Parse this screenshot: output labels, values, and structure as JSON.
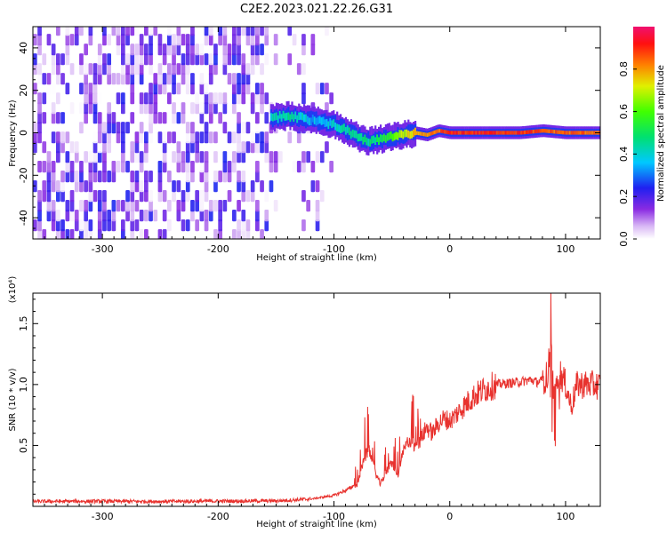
{
  "title": "C2E2.2023.021.22.26.G31",
  "chart_data": [
    {
      "type": "heatmap",
      "xlabel": "Height of straight line (km)",
      "ylabel": "Frequency (Hz)",
      "xlim": [
        -360,
        130
      ],
      "ylim": [
        -50,
        50
      ],
      "x_ticks": [
        -300,
        -200,
        -100,
        0,
        100
      ],
      "y_ticks": [
        -40,
        -20,
        0,
        20,
        40
      ],
      "colorbar": {
        "label": "Normalized spectral amplitude",
        "range": [
          0.0,
          1.0
        ],
        "ticks": [
          0.0,
          0.2,
          0.4,
          0.6,
          0.8
        ]
      },
      "ridge_track": {
        "x": [
          -155,
          -140,
          -130,
          -120,
          -110,
          -100,
          -90,
          -80,
          -70,
          -60,
          -50,
          -40,
          -30,
          -20,
          -10,
          0,
          20,
          40,
          60,
          80,
          100,
          130
        ],
        "y": [
          7,
          8,
          7,
          6,
          5,
          4,
          1,
          -2,
          -4,
          -3,
          -2,
          -1,
          0,
          -1,
          1,
          0,
          0,
          0,
          0,
          1,
          0,
          0
        ],
        "amplitude": [
          0.4,
          0.45,
          0.4,
          0.35,
          0.35,
          0.4,
          0.45,
          0.45,
          0.45,
          0.5,
          0.6,
          0.7,
          0.75,
          0.8,
          0.85,
          0.9,
          0.9,
          0.9,
          0.9,
          0.85,
          0.85,
          0.85
        ]
      },
      "noise_region": {
        "x_from": -360,
        "x_to": -100,
        "amplitude": [
          0.0,
          0.25
        ]
      }
    },
    {
      "type": "line",
      "xlabel": "Height of straight line (km)",
      "ylabel": "SNR (10 * v/v)",
      "y_multiplier": "(x10⁴)",
      "xlim": [
        -360,
        130
      ],
      "ylim": [
        0,
        17500
      ],
      "x_ticks": [
        -300,
        -200,
        -100,
        0,
        100
      ],
      "y_ticks": [
        5000,
        10000,
        15000
      ],
      "y_tick_labels": [
        "0.5",
        "1.0",
        "1.5"
      ],
      "series": [
        {
          "color": "#e8322e",
          "x": [
            -360,
            -300,
            -250,
            -200,
            -150,
            -120,
            -100,
            -90,
            -80,
            -75,
            -70,
            -65,
            -60,
            -55,
            -50,
            -45,
            -40,
            -35,
            -30,
            -25,
            -20,
            -15,
            -10,
            -5,
            0,
            10,
            20,
            30,
            40,
            50,
            60,
            70,
            75,
            80,
            85,
            87,
            90,
            95,
            100,
            105,
            110,
            120,
            130
          ],
          "y": [
            400,
            420,
            400,
            430,
            450,
            600,
            900,
            1300,
            1800,
            3500,
            4800,
            3000,
            1800,
            2800,
            3600,
            2500,
            4500,
            5500,
            4800,
            5500,
            6500,
            6000,
            6800,
            7200,
            7000,
            8000,
            9000,
            9600,
            10000,
            10100,
            10200,
            10400,
            10200,
            10300,
            10800,
            14000,
            9000,
            11000,
            10000,
            8200,
            10000,
            10000,
            9900
          ]
        }
      ]
    }
  ]
}
